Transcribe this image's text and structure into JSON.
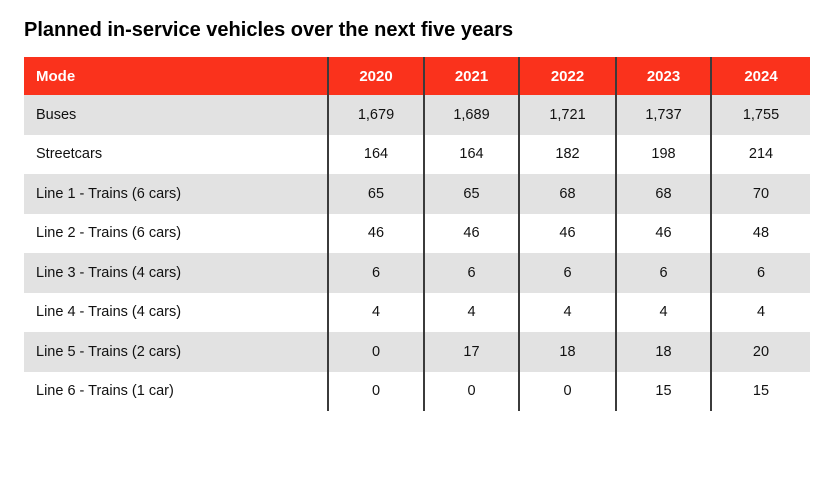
{
  "title": "Planned in-service vehicles over the next five years",
  "colors": {
    "header_bg": "#FA321C",
    "header_text": "#FFFFFF",
    "row_alt_bg": "#E2E2E2",
    "row_bg": "#FFFFFF",
    "divider": "#3B3B3B",
    "body_text": "#111111"
  },
  "chart_data": {
    "type": "table",
    "title": "Planned in-service vehicles over the next five years",
    "columns": [
      "Mode",
      "2020",
      "2021",
      "2022",
      "2023",
      "2024"
    ],
    "rows": [
      {
        "mode": "Buses",
        "values": [
          "1,679",
          "1,689",
          "1,721",
          "1,737",
          "1,755"
        ]
      },
      {
        "mode": "Streetcars",
        "values": [
          "164",
          "164",
          "182",
          "198",
          "214"
        ]
      },
      {
        "mode": "Line 1 - Trains (6 cars)",
        "values": [
          "65",
          "65",
          "68",
          "68",
          "70"
        ]
      },
      {
        "mode": "Line 2 - Trains (6 cars)",
        "values": [
          "46",
          "46",
          "46",
          "46",
          "48"
        ]
      },
      {
        "mode": "Line 3 - Trains (4 cars)",
        "values": [
          "6",
          "6",
          "6",
          "6",
          "6"
        ]
      },
      {
        "mode": "Line 4 - Trains (4 cars)",
        "values": [
          "4",
          "4",
          "4",
          "4",
          "4"
        ]
      },
      {
        "mode": "Line 5 - Trains (2 cars)",
        "values": [
          "0",
          "17",
          "18",
          "18",
          "20"
        ]
      },
      {
        "mode": "Line 6 - Trains (1 car)",
        "values": [
          "0",
          "0",
          "0",
          "15",
          "15"
        ]
      }
    ]
  }
}
